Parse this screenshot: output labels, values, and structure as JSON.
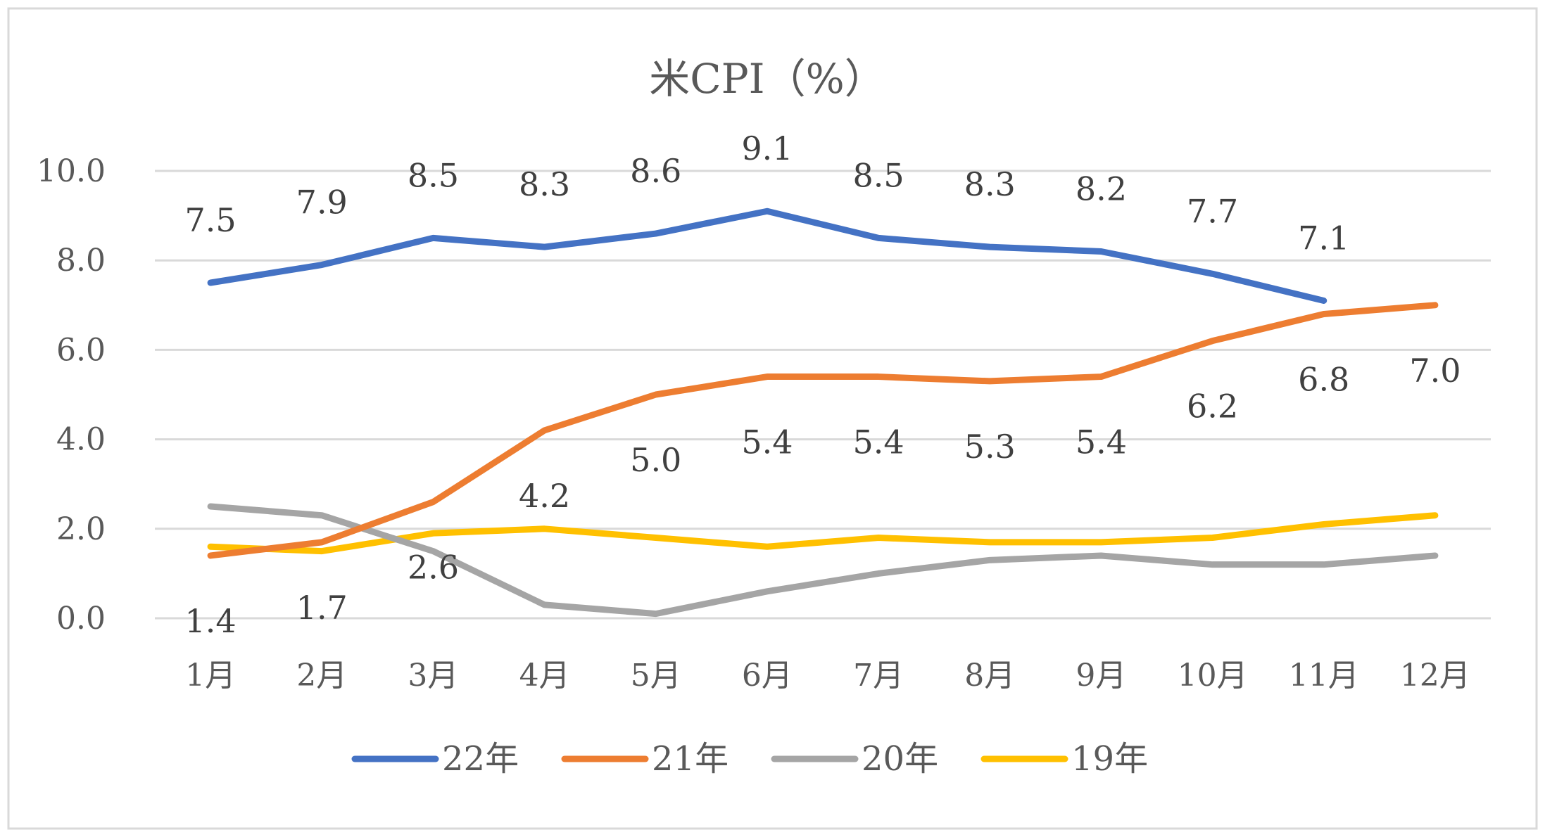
{
  "chart_data": {
    "type": "line",
    "title": "米CPI（%）",
    "categories": [
      "1月",
      "2月",
      "3月",
      "4月",
      "5月",
      "6月",
      "7月",
      "8月",
      "9月",
      "10月",
      "11月",
      "12月"
    ],
    "ylim": [
      0,
      10
    ],
    "yticks": [
      "0.0",
      "2.0",
      "4.0",
      "6.0",
      "8.0",
      "10.0"
    ],
    "grid": true,
    "legend_position": "bottom",
    "series": [
      {
        "name": "22年",
        "color": "#4472C4",
        "values": [
          7.5,
          7.9,
          8.5,
          8.3,
          8.6,
          9.1,
          8.5,
          8.3,
          8.2,
          7.7,
          7.1,
          null
        ],
        "labels": [
          "7.5",
          "7.9",
          "8.5",
          "8.3",
          "8.6",
          "9.1",
          "8.5",
          "8.3",
          "8.2",
          "7.7",
          "7.1",
          null
        ]
      },
      {
        "name": "21年",
        "color": "#ED7D31",
        "values": [
          1.4,
          1.7,
          2.6,
          4.2,
          5.0,
          5.4,
          5.4,
          5.3,
          5.4,
          6.2,
          6.8,
          7.0
        ],
        "labels": [
          "1.4",
          "1.7",
          "2.6",
          "4.2",
          "5.0",
          "5.4",
          "5.4",
          "5.3",
          "5.4",
          "6.2",
          "6.8",
          "7.0"
        ]
      },
      {
        "name": "20年",
        "color": "#A5A5A5",
        "values": [
          2.5,
          2.3,
          1.5,
          0.3,
          0.1,
          0.6,
          1.0,
          1.3,
          1.4,
          1.2,
          1.2,
          1.4
        ]
      },
      {
        "name": "19年",
        "color": "#FFC000",
        "values": [
          1.6,
          1.5,
          1.9,
          2.0,
          1.8,
          1.6,
          1.8,
          1.7,
          1.7,
          1.8,
          2.1,
          2.3
        ]
      }
    ]
  }
}
